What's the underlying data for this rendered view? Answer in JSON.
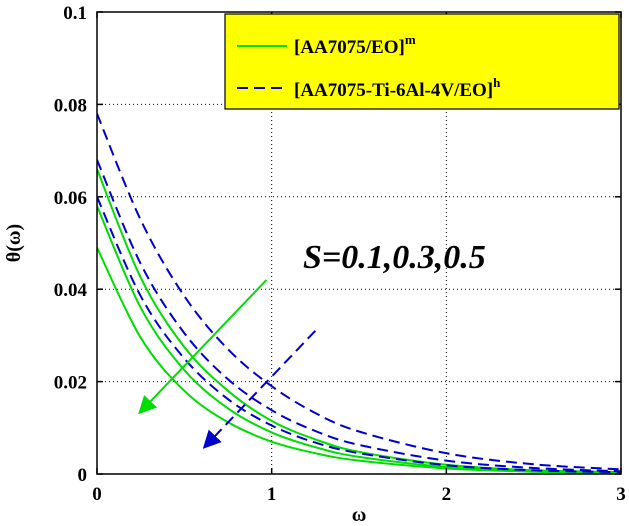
{
  "chart_data": {
    "type": "line",
    "xlabel": "ω",
    "ylabel": "θ(ω)",
    "xlim": [
      0,
      3
    ],
    "ylim": [
      0,
      0.1
    ],
    "x_ticks": [
      "0",
      "1",
      "2",
      "3"
    ],
    "y_ticks": [
      "0",
      "0.02",
      "0.04",
      "0.06",
      "0.08",
      "0.1"
    ],
    "grid": true,
    "legend_position": "top-right",
    "legend_background": "#ffff00",
    "annotation": "S=0.1,0.3,0.5",
    "legend": [
      {
        "label": "[AA7075/EO]",
        "sup": "m",
        "color": "#00dd00",
        "style": "solid"
      },
      {
        "label": "[AA7075-Ti-6Al-4V/EO]",
        "sup": "h",
        "color": "#0000cc",
        "style": "dashed"
      }
    ],
    "series": [
      {
        "group": 0,
        "color": "#00dd00",
        "style": "solid",
        "x": [
          0,
          0.25,
          0.5,
          0.75,
          1.0,
          1.25,
          1.5,
          2.0,
          2.5,
          3.0
        ],
        "y": [
          0.066,
          0.0425,
          0.0275,
          0.018,
          0.0115,
          0.0075,
          0.0048,
          0.002,
          0.0008,
          0.0004
        ]
      },
      {
        "group": 0,
        "color": "#00dd00",
        "style": "solid",
        "x": [
          0,
          0.25,
          0.5,
          0.75,
          1.0,
          1.25,
          1.5,
          2.0,
          2.5,
          3.0
        ],
        "y": [
          0.058,
          0.036,
          0.0225,
          0.0142,
          0.009,
          0.0058,
          0.0037,
          0.0015,
          0.0006,
          0.0003
        ]
      },
      {
        "group": 0,
        "color": "#00dd00",
        "style": "solid",
        "x": [
          0,
          0.25,
          0.5,
          0.75,
          1.0,
          1.25,
          1.5,
          2.0,
          2.5,
          3.0
        ],
        "y": [
          0.049,
          0.0295,
          0.018,
          0.0112,
          0.007,
          0.0045,
          0.0029,
          0.0012,
          0.0005,
          0.0002
        ]
      },
      {
        "group": 1,
        "color": "#0000cc",
        "style": "dashed",
        "x": [
          0,
          0.25,
          0.5,
          0.75,
          1.0,
          1.25,
          1.5,
          2.0,
          2.5,
          3.0
        ],
        "y": [
          0.078,
          0.055,
          0.0385,
          0.027,
          0.019,
          0.0132,
          0.0092,
          0.0045,
          0.0021,
          0.001
        ]
      },
      {
        "group": 1,
        "color": "#0000cc",
        "style": "dashed",
        "x": [
          0,
          0.25,
          0.5,
          0.75,
          1.0,
          1.25,
          1.5,
          2.0,
          2.5,
          3.0
        ],
        "y": [
          0.068,
          0.0455,
          0.0305,
          0.0205,
          0.0138,
          0.0093,
          0.0063,
          0.0029,
          0.0013,
          0.0006
        ]
      },
      {
        "group": 1,
        "color": "#0000cc",
        "style": "dashed",
        "x": [
          0,
          0.25,
          0.5,
          0.75,
          1.0,
          1.25,
          1.5,
          2.0,
          2.5,
          3.0
        ],
        "y": [
          0.06,
          0.0385,
          0.025,
          0.0162,
          0.0105,
          0.0068,
          0.0045,
          0.0019,
          0.0008,
          0.0004
        ]
      }
    ],
    "arrows": [
      {
        "color": "#00dd00",
        "style": "solid",
        "from": [
          0.97,
          0.042
        ],
        "to": [
          0.25,
          0.0135
        ]
      },
      {
        "color": "#0000cc",
        "style": "dashed",
        "from": [
          1.25,
          0.031
        ],
        "to": [
          0.62,
          0.006
        ]
      }
    ]
  }
}
